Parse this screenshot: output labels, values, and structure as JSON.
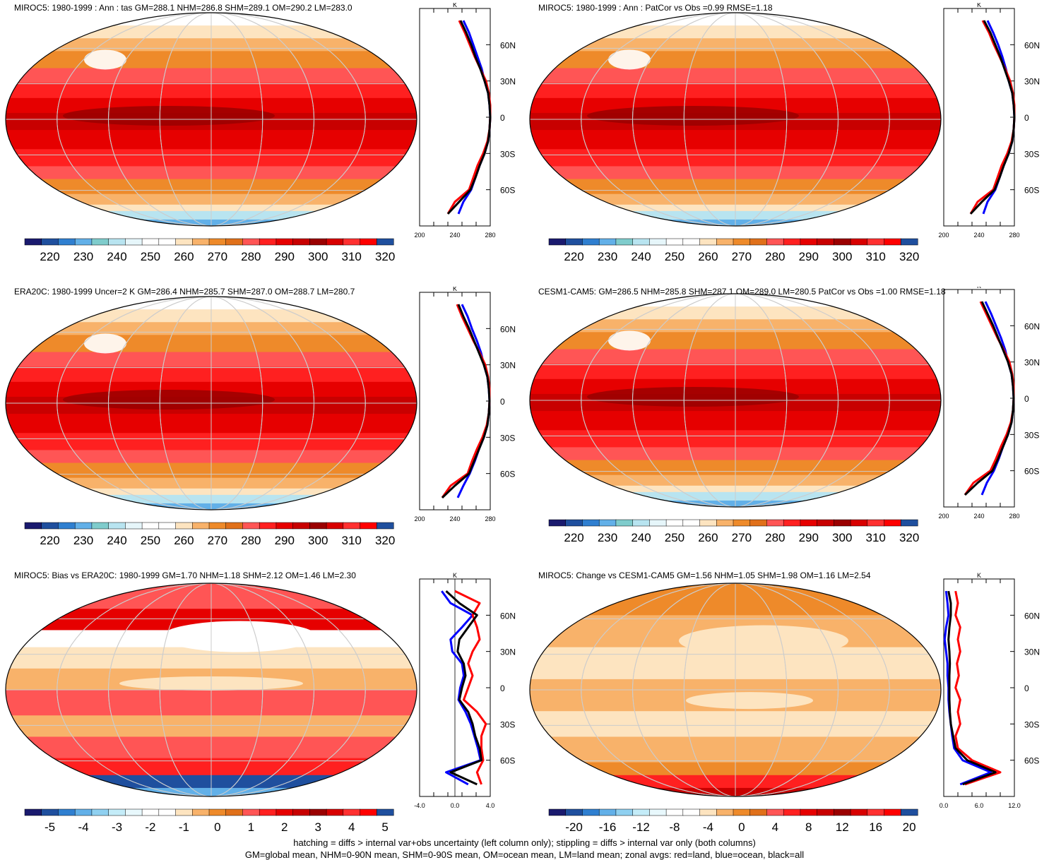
{
  "footer": {
    "line1": "hatching = diffs > internal var+obs uncertainty (left column only); stippling = diffs > internal var only (both columns)",
    "line2": "GM=global mean, NHM=0-90N mean, SHM=0-90S mean, OM=ocean mean, LM=land mean; zonal avgs: red=land, blue=ocean, black=all"
  },
  "colors": {
    "land_line": "#ff0000",
    "ocean_line": "#0000ff",
    "all_line": "#000000",
    "abs_scale": [
      "#1a1a6e",
      "#1f4f9e",
      "#2f7fd0",
      "#62b0e8",
      "#7fcccc",
      "#b8e4f0",
      "#e6f6fa",
      "#ffffff",
      "#ffffff",
      "#fde4c0",
      "#f8b26a",
      "#ee8a2a",
      "#e0701a",
      "#ff5555",
      "#ff2020",
      "#e60000",
      "#c80000",
      "#9a0000",
      "#d80000",
      "#ff3030",
      "#ff0000",
      "#1f4f9e"
    ],
    "diff_scale": [
      "#1a1a6e",
      "#1f4f9e",
      "#2f7fd0",
      "#62b0e8",
      "#8fd0f0",
      "#c4ecf8",
      "#e8f8fc",
      "#ffffff",
      "#ffffff",
      "#fde4c0",
      "#f8b26a",
      "#ee8a2a",
      "#e0701a",
      "#ff5555",
      "#ff2020",
      "#e60000",
      "#c80000",
      "#9a0000",
      "#d80000",
      "#ff3030",
      "#ff0000",
      "#1f4f9e"
    ]
  },
  "chart_data": [
    {
      "type": "heatmap",
      "title": "MIROC5: 1980-1999 : Ann : tas GM=288.1 NHM=286.8 SHM=289.1 OM=290.2 LM=283.0",
      "colorbar_ticks": [
        "220",
        "230",
        "240",
        "250",
        "260",
        "270",
        "280",
        "290",
        "300",
        "310",
        "320"
      ],
      "zonal": {
        "unit": "K",
        "xticks": [
          "200",
          "240",
          "280"
        ],
        "xlim": [
          200,
          300
        ],
        "lat_labels": [
          "60N",
          "30N",
          "0",
          "30S",
          "60S"
        ],
        "lat": [
          80,
          70,
          60,
          50,
          40,
          30,
          20,
          10,
          0,
          -10,
          -20,
          -30,
          -40,
          -50,
          -60,
          -70,
          -80
        ],
        "all": [
          258,
          266,
          273,
          279,
          286,
          292,
          297,
          299,
          300,
          299,
          297,
          292,
          285,
          279,
          272,
          256,
          240
        ],
        "land": [
          256,
          264,
          271,
          278,
          286,
          294,
          298,
          300,
          300,
          299,
          296,
          290,
          282,
          276,
          270,
          250,
          240
        ],
        "ocean": [
          262,
          270,
          276,
          282,
          288,
          292,
          297,
          299,
          300,
          299,
          297,
          292,
          285,
          279,
          273,
          262,
          255
        ]
      }
    },
    {
      "type": "heatmap",
      "title": "MIROC5: 1980-1999 : Ann : PatCor vs Obs =0.99 RMSE=1.18",
      "colorbar_ticks": [
        "220",
        "230",
        "240",
        "250",
        "260",
        "270",
        "280",
        "290",
        "300",
        "310",
        "320"
      ],
      "zonal": {
        "unit": "K",
        "xticks": [
          "200",
          "240",
          "280"
        ],
        "xlim": [
          200,
          300
        ],
        "lat_labels": [
          "60N",
          "30N",
          "0",
          "30S",
          "60S"
        ],
        "lat": [
          80,
          70,
          60,
          50,
          40,
          30,
          20,
          10,
          0,
          -10,
          -20,
          -30,
          -40,
          -50,
          -60,
          -70,
          -80
        ],
        "all": [
          257,
          266,
          273,
          280,
          286,
          292,
          297,
          299,
          300,
          299,
          297,
          292,
          285,
          279,
          272,
          254,
          238
        ],
        "land": [
          255,
          264,
          271,
          279,
          287,
          294,
          298,
          300,
          300,
          299,
          296,
          290,
          282,
          276,
          270,
          248,
          238
        ],
        "ocean": [
          262,
          270,
          277,
          283,
          288,
          292,
          297,
          299,
          300,
          299,
          297,
          292,
          285,
          279,
          273,
          262,
          256
        ]
      }
    },
    {
      "type": "heatmap",
      "title": "ERA20C: 1980-1999 Uncer=2 K GM=286.4 NHM=285.7 SHM=287.0 OM=288.7 LM=280.7",
      "colorbar_ticks": [
        "220",
        "230",
        "240",
        "250",
        "260",
        "270",
        "280",
        "290",
        "300",
        "310",
        "320"
      ],
      "zonal": {
        "unit": "K",
        "xticks": [
          "200",
          "240",
          "280"
        ],
        "xlim": [
          200,
          300
        ],
        "lat_labels": [
          "60N",
          "30N",
          "0",
          "30S",
          "60S"
        ],
        "lat": [
          80,
          70,
          60,
          50,
          40,
          30,
          20,
          10,
          0,
          -10,
          -20,
          -30,
          -40,
          -50,
          -60,
          -70,
          -80
        ],
        "all": [
          255,
          262,
          270,
          277,
          284,
          291,
          296,
          298,
          299,
          298,
          296,
          291,
          284,
          277,
          270,
          250,
          232
        ],
        "land": [
          253,
          260,
          268,
          276,
          285,
          293,
          297,
          299,
          299,
          298,
          295,
          289,
          281,
          274,
          268,
          244,
          232
        ],
        "ocean": [
          260,
          268,
          274,
          281,
          287,
          291,
          296,
          298,
          299,
          298,
          296,
          291,
          284,
          278,
          271,
          262,
          254
        ]
      }
    },
    {
      "type": "heatmap",
      "title": "CESM1-CAM5: GM=286.5 NHM=285.8 SHM=287.1 OM=289.0 LM=280.5 PatCor vs Obs =1.00 RMSE=1.18",
      "colorbar_ticks": [
        "220",
        "230",
        "240",
        "250",
        "260",
        "270",
        "280",
        "290",
        "300",
        "310",
        "320"
      ],
      "zonal": {
        "unit": "K",
        "xticks": [
          "200",
          "240",
          "280"
        ],
        "xlim": [
          200,
          300
        ],
        "lat_labels": [
          "60N",
          "30N",
          "0",
          "30S",
          "60S"
        ],
        "lat": [
          80,
          70,
          60,
          50,
          40,
          30,
          20,
          10,
          0,
          -10,
          -20,
          -30,
          -40,
          -50,
          -60,
          -70,
          -80
        ],
        "all": [
          254,
          262,
          270,
          277,
          284,
          291,
          296,
          298,
          299,
          298,
          296,
          291,
          284,
          277,
          269,
          248,
          230
        ],
        "land": [
          252,
          260,
          268,
          276,
          285,
          293,
          297,
          299,
          299,
          298,
          295,
          289,
          281,
          274,
          266,
          242,
          230
        ],
        "ocean": [
          259,
          267,
          274,
          281,
          287,
          291,
          296,
          298,
          299,
          298,
          296,
          291,
          284,
          278,
          271,
          261,
          254
        ]
      }
    },
    {
      "type": "heatmap",
      "title": "MIROC5: Bias vs ERA20C: 1980-1999 GM=1.70 NHM=1.18 SHM=2.12 OM=1.46 LM=2.30",
      "colorbar_ticks": [
        "-5",
        "-4",
        "-3",
        "-2",
        "-1",
        "0",
        "1",
        "2",
        "3",
        "4",
        "5"
      ],
      "zonal": {
        "unit": "K",
        "xticks": [
          "-4.0",
          "0.0",
          "4.0"
        ],
        "xlim": [
          -4,
          4
        ],
        "lat_labels": [
          "60N",
          "30N",
          "0",
          "30S",
          "60S"
        ],
        "lat": [
          80,
          70,
          60,
          50,
          40,
          30,
          20,
          10,
          0,
          -10,
          -20,
          -30,
          -40,
          -50,
          -60,
          -70,
          -80
        ],
        "all": [
          -1.0,
          0.5,
          2.5,
          1.5,
          0.5,
          0.3,
          1.0,
          1.2,
          0.8,
          0.5,
          1.5,
          2.0,
          2.3,
          2.8,
          3.0,
          -0.5,
          2.5
        ],
        "land": [
          0.0,
          2.8,
          2.0,
          2.5,
          2.8,
          2.0,
          1.5,
          2.0,
          1.5,
          1.0,
          2.5,
          3.5,
          3.0,
          3.0,
          3.2,
          2.5,
          3.0
        ],
        "ocean": [
          -1.5,
          -0.5,
          2.0,
          0.8,
          -0.5,
          -0.3,
          0.8,
          1.0,
          0.6,
          0.4,
          1.2,
          1.8,
          2.2,
          2.6,
          2.9,
          -1.0,
          1.5
        ]
      }
    },
    {
      "type": "heatmap",
      "title": "MIROC5: Change vs CESM1-CAM5 GM=1.56 NHM=1.05 SHM=1.98 OM=1.16 LM=2.54",
      "colorbar_ticks": [
        "-20",
        "-16",
        "-12",
        "-8",
        "-4",
        "0",
        "4",
        "8",
        "12",
        "16",
        "20"
      ],
      "zonal": {
        "unit": "K",
        "xticks": [
          "0.0",
          "6.0",
          "12.0"
        ],
        "xlim": [
          0,
          15
        ],
        "lat_labels": [
          "60N",
          "30N",
          "0",
          "30S",
          "60S"
        ],
        "lat": [
          80,
          70,
          60,
          50,
          40,
          30,
          20,
          10,
          0,
          -10,
          -20,
          -30,
          -40,
          -50,
          -60,
          -70,
          -80
        ],
        "all": [
          1.0,
          1.5,
          1.5,
          1.2,
          1.0,
          1.2,
          1.3,
          1.2,
          1.2,
          1.2,
          1.3,
          1.5,
          2.0,
          2.5,
          5.0,
          11.0,
          4.0
        ],
        "land": [
          2.5,
          3.0,
          2.5,
          3.5,
          3.0,
          3.5,
          2.8,
          3.2,
          2.5,
          3.5,
          3.0,
          3.5,
          2.5,
          3.0,
          6.0,
          12.0,
          4.5
        ],
        "ocean": [
          0.5,
          0.8,
          1.0,
          0.5,
          0.2,
          0.5,
          0.8,
          0.8,
          1.0,
          1.0,
          1.2,
          1.5,
          1.8,
          2.2,
          4.0,
          10.0,
          3.5
        ]
      }
    }
  ]
}
